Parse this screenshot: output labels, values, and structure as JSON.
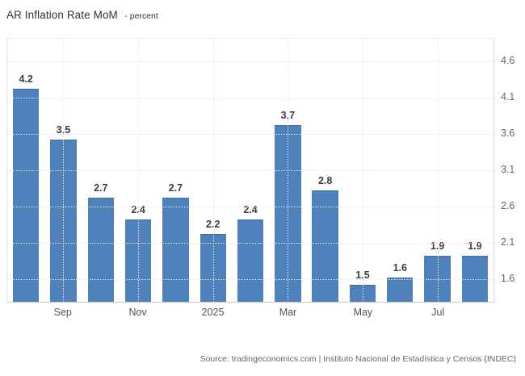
{
  "header": {
    "title": "AR Inflation Rate MoM",
    "subtitle": "- percent"
  },
  "chart_data": {
    "type": "bar",
    "title": "AR Inflation Rate MoM",
    "unit": "percent",
    "values": [
      4.2,
      3.5,
      2.7,
      2.4,
      2.7,
      2.2,
      2.4,
      3.7,
      2.8,
      1.5,
      1.6,
      1.9,
      1.9
    ],
    "data_labels": [
      "4.2",
      "3.5",
      "2.7",
      "2.4",
      "2.7",
      "2.2",
      "2.4",
      "3.7",
      "2.8",
      "1.5",
      "1.6",
      "1.9",
      "1.9"
    ],
    "x_tick_labels": [
      "Sep",
      "Nov",
      "2025",
      "Mar",
      "May",
      "Jul"
    ],
    "x_tick_bar_indices": [
      1,
      3,
      5,
      7,
      9,
      11
    ],
    "y_ticks": [
      4.6,
      4.1,
      3.6,
      3.1,
      2.6,
      2.1,
      1.6
    ],
    "y_axis_side": "right",
    "ylim": [
      1.27,
      4.91
    ],
    "grid": true,
    "bar_color": "#4f81bd",
    "value_label_color": "#3d3d3d",
    "legend": "none"
  },
  "footer": {
    "source": "Source: tradingeconomics.com | Instituto Nacional de Estadística y Censos (INDEC)"
  }
}
